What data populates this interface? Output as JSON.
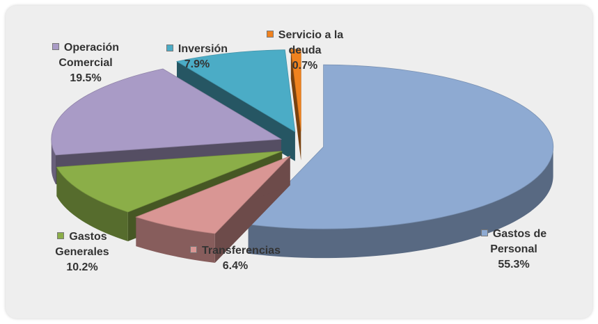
{
  "chart_data": {
    "type": "pie3d",
    "categories": [
      "Gastos de Personal",
      "Transferencias",
      "Gastos Generales",
      "Operación Comercial",
      "Inversión",
      "Servicio a la deuda"
    ],
    "values": [
      55.3,
      6.4,
      10.2,
      19.5,
      7.9,
      0.7
    ],
    "value_labels": [
      "55.3%",
      "6.4%",
      "10.2%",
      "19.5%",
      "7.9%",
      "0.7%"
    ],
    "colors": [
      "#8eaad2",
      "#d99694",
      "#8bae48",
      "#a99bc6",
      "#4bacc6",
      "#f0821e"
    ]
  }
}
